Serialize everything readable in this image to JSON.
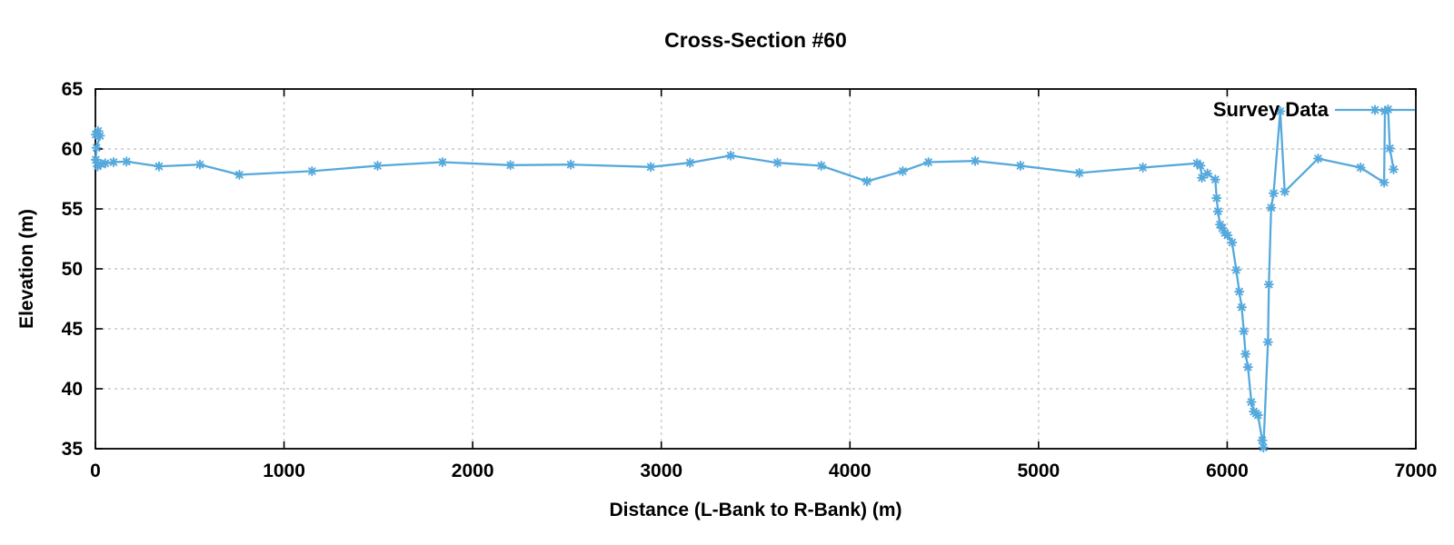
{
  "figure": {
    "title": "Cross-Section #60",
    "xlabel": "Distance (L-Bank to R-Bank) (m)",
    "ylabel": "Elevation (m)",
    "legend": {
      "label": "Survey Data"
    }
  },
  "style": {
    "line_color": "#55a9dc",
    "grid_color": "#c9c9c9",
    "axis_color": "#000000",
    "text_color": "#000000",
    "background": "#ffffff"
  },
  "chart_data": {
    "type": "line",
    "title": "Cross-Section #60",
    "xlabel": "Distance (L-Bank to R-Bank) (m)",
    "ylabel": "Elevation (m)",
    "xlim": [
      0,
      7000
    ],
    "ylim": [
      35,
      65
    ],
    "xticks": [
      0,
      1000,
      2000,
      3000,
      4000,
      5000,
      6000,
      7000
    ],
    "yticks": [
      35,
      40,
      45,
      50,
      55,
      60,
      65
    ],
    "grid": true,
    "grid_style": "dashed",
    "legend_position": "top-right",
    "series": [
      {
        "name": "Survey Data",
        "color": "#55a9dc",
        "marker": "asterisk",
        "points": [
          [
            2,
            61.2
          ],
          [
            14,
            61.5
          ],
          [
            24,
            61.1
          ],
          [
            6,
            60.1
          ],
          [
            2,
            59.1
          ],
          [
            12,
            58.55
          ],
          [
            28,
            58.75
          ],
          [
            52,
            58.8
          ],
          [
            96,
            58.9
          ],
          [
            165,
            58.95
          ],
          [
            337,
            58.55
          ],
          [
            554,
            58.7
          ],
          [
            763,
            57.85
          ],
          [
            1148,
            58.15
          ],
          [
            1496,
            58.6
          ],
          [
            1840,
            58.9
          ],
          [
            2200,
            58.65
          ],
          [
            2520,
            58.7
          ],
          [
            2944,
            58.5
          ],
          [
            3152,
            58.85
          ],
          [
            3368,
            59.45
          ],
          [
            3616,
            58.85
          ],
          [
            3848,
            58.6
          ],
          [
            4090,
            57.3
          ],
          [
            4280,
            58.15
          ],
          [
            4416,
            58.9
          ],
          [
            4664,
            59.0
          ],
          [
            4904,
            58.6
          ],
          [
            5216,
            58.0
          ],
          [
            5553,
            58.45
          ],
          [
            5840,
            58.8
          ],
          [
            5858,
            58.6
          ],
          [
            5866,
            57.6
          ],
          [
            5895,
            57.95
          ],
          [
            5937,
            57.45
          ],
          [
            5944,
            55.9
          ],
          [
            5951,
            54.8
          ],
          [
            5962,
            53.7
          ],
          [
            5974,
            53.4
          ],
          [
            5988,
            53.0
          ],
          [
            6002,
            52.8
          ],
          [
            6026,
            52.2
          ],
          [
            6048,
            49.9
          ],
          [
            6064,
            48.1
          ],
          [
            6077,
            46.8
          ],
          [
            6088,
            44.8
          ],
          [
            6097,
            42.9
          ],
          [
            6110,
            41.8
          ],
          [
            6128,
            38.9
          ],
          [
            6141,
            38.1
          ],
          [
            6153,
            37.95
          ],
          [
            6163,
            37.8
          ],
          [
            6186,
            35.7
          ],
          [
            6192,
            35.1
          ],
          [
            6216,
            43.9
          ],
          [
            6221,
            48.7
          ],
          [
            6233,
            55.1
          ],
          [
            6246,
            56.3
          ],
          [
            6281,
            63.15
          ],
          [
            6305,
            56.45
          ],
          [
            6482,
            59.2
          ],
          [
            6707,
            58.45
          ],
          [
            6832,
            57.2
          ],
          [
            6836,
            63.15
          ],
          [
            6853,
            63.3
          ],
          [
            6862,
            60.05
          ],
          [
            6882,
            58.3
          ]
        ]
      }
    ]
  }
}
